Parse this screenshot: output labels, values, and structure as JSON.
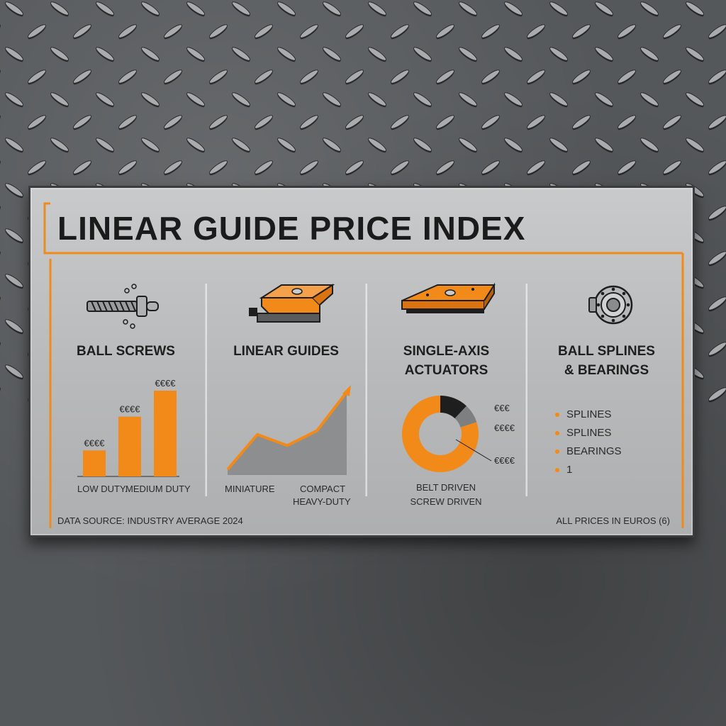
{
  "title": "LINEAR GUIDE PRICE INDEX",
  "accent_color": "#f28a1a",
  "columns": [
    {
      "label_lines": [
        "BALL SCREWS"
      ],
      "icon": "ball-screw-icon"
    },
    {
      "label_lines": [
        "LINEAR GUIDES"
      ],
      "icon": "linear-guide-icon"
    },
    {
      "label_lines": [
        "SINGLE-AXIS",
        "ACTUATORS"
      ],
      "icon": "actuator-icon"
    },
    {
      "label_lines": [
        "BALL SPLINES",
        "& BEARINGS"
      ],
      "icon": "bearing-icon"
    }
  ],
  "chart_data": [
    {
      "type": "bar",
      "categories": [
        "LOW DUTY.",
        "MEDIUM DUTY",
        ""
      ],
      "values": [
        1,
        2.3,
        3.3
      ],
      "data_labels": [
        "€€€€",
        "€€€€",
        "€€€€"
      ],
      "ylim": [
        0,
        3.6
      ],
      "color": "#f28a1a"
    },
    {
      "type": "area",
      "x_labels": [
        "MINIATURE",
        "COMPACT",
        "HEAVY-DUTY"
      ],
      "x": [
        0,
        1,
        2,
        3,
        4
      ],
      "values": [
        0.3,
        2.2,
        1.6,
        2.4,
        4.5
      ],
      "ylim": [
        0,
        5
      ],
      "line_color": "#f28a1a",
      "fill_color": "#8d8e8f"
    },
    {
      "type": "pie",
      "donut": true,
      "slices": [
        {
          "label": "€€€",
          "value": 12,
          "color": "#1e1e1e"
        },
        {
          "label": "€€€€",
          "value": 8,
          "color": "#7e7f80"
        },
        {
          "label": "€€€€",
          "value": 80,
          "color": "#f28a1a"
        }
      ],
      "legend": [
        "BELT DRIVEN",
        "SCREW DRIVEN"
      ]
    }
  ],
  "bearings_list": [
    "SPLINES",
    "SPLINES",
    "BEARINGS",
    "1"
  ],
  "footer": {
    "source": "DATA SOURCE: INDUSTRY AVERAGE 2024",
    "note": "ALL PRICES IN EUROS (6)"
  }
}
